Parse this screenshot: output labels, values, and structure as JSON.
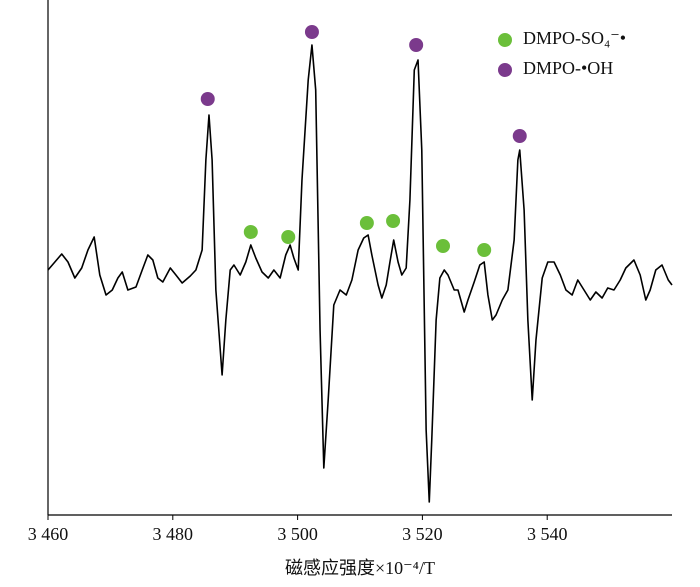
{
  "chart_data": {
    "type": "line",
    "x_label": "磁感应强度×10⁻⁴/T",
    "xlim": [
      3460,
      3560
    ],
    "xticks": [
      {
        "value": 3460,
        "label": "3 460"
      },
      {
        "value": 3480,
        "label": "3 480"
      },
      {
        "value": 3500,
        "label": "3 500"
      },
      {
        "value": 3520,
        "label": "3 520"
      },
      {
        "value": 3540,
        "label": "3 540"
      }
    ],
    "ylim": [
      0,
      515
    ],
    "legend": "upper right",
    "line": {
      "color": "#000000",
      "x": [
        3460,
        3461.1,
        3462.2,
        3463.2,
        3464.3,
        3465.4,
        3466.4,
        3467.4,
        3468.3,
        3469.3,
        3470.3,
        3471.2,
        3471.9,
        3472.8,
        3474.1,
        3475.1,
        3476.0,
        3476.8,
        3477.6,
        3478.4,
        3479.6,
        3480.5,
        3481.5,
        3482.8,
        3483.7,
        3484.7,
        3485.3,
        3485.8,
        3486.3,
        3486.9,
        3487.9,
        3488.5,
        3489.2,
        3489.8,
        3490.8,
        3491.7,
        3492.5,
        3493.3,
        3494.3,
        3495.3,
        3496.2,
        3497.2,
        3498.1,
        3498.8,
        3499.4,
        3500.1,
        3500.7,
        3501.7,
        3502.3,
        3502.9,
        3503.6,
        3504.2,
        3504.9,
        3505.8,
        3506.8,
        3507.8,
        3508.7,
        3509.7,
        3510.6,
        3511.3,
        3511.9,
        3512.9,
        3513.5,
        3514.2,
        3514.8,
        3515.4,
        3516.1,
        3516.7,
        3517.4,
        3518.0,
        3518.7,
        3519.3,
        3519.9,
        3520.6,
        3521.1,
        3521.5,
        3522.2,
        3522.8,
        3523.5,
        3524.1,
        3525.1,
        3525.7,
        3526.7,
        3527.3,
        3528.3,
        3529.2,
        3529.9,
        3530.5,
        3531.2,
        3531.8,
        3532.8,
        3533.7,
        3534.7,
        3535.3,
        3535.6,
        3536.3,
        3536.9,
        3537.6,
        3538.2,
        3539.2,
        3540.1,
        3541.1,
        3542.1,
        3543.0,
        3544.0,
        3544.9,
        3545.9,
        3546.9,
        3547.8,
        3548.8,
        3549.7,
        3550.7,
        3551.7,
        3552.6,
        3553.9,
        3554.9,
        3555.8,
        3556.5,
        3557.4,
        3558.4,
        3559.4,
        3560
      ],
      "values": [
        245,
        253,
        261,
        253,
        237,
        247,
        265,
        278,
        240,
        220,
        225,
        237,
        243,
        225,
        228,
        245,
        260,
        255,
        237,
        233,
        247,
        240,
        232,
        239,
        245,
        265,
        355,
        400,
        355,
        225,
        140,
        195,
        245,
        250,
        240,
        253,
        270,
        257,
        243,
        237,
        245,
        237,
        260,
        270,
        257,
        245,
        335,
        435,
        470,
        425,
        185,
        47,
        115,
        210,
        225,
        220,
        235,
        265,
        277,
        280,
        260,
        230,
        217,
        230,
        253,
        275,
        253,
        240,
        247,
        315,
        445,
        455,
        365,
        85,
        13,
        75,
        195,
        237,
        245,
        240,
        225,
        225,
        203,
        215,
        233,
        250,
        253,
        220,
        195,
        200,
        215,
        225,
        275,
        355,
        365,
        305,
        195,
        115,
        175,
        237,
        253,
        253,
        240,
        225,
        220,
        235,
        225,
        215,
        223,
        217,
        227,
        225,
        235,
        247,
        255,
        240,
        215,
        225,
        245,
        250,
        235,
        230
      ]
    },
    "series": [
      {
        "name": "DMPO-SO₄⁻•",
        "color": "#6bbf3a",
        "x": [
          3492.5,
          3498.5,
          3511.1,
          3515.3,
          3523.3,
          3529.9
        ],
        "values": [
          283,
          278,
          292,
          294,
          269,
          265
        ]
      },
      {
        "name": "DMPO-•OH",
        "color": "#7b3a8c",
        "x": [
          3485.6,
          3502.3,
          3519.0,
          3535.6
        ],
        "values": [
          416,
          483,
          470,
          379
        ]
      }
    ]
  }
}
